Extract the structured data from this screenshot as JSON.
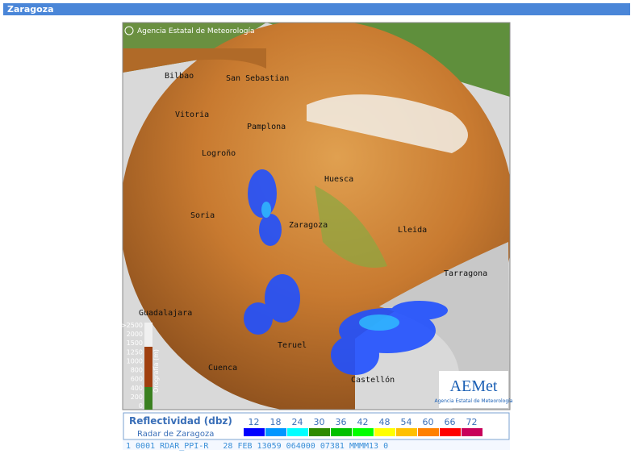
{
  "header": {
    "title": "Zaragoza"
  },
  "map": {
    "credit": "Agencia Estatal de Meteorología",
    "cities": [
      "Bilbao",
      "San Sebastian",
      "Vitoria",
      "Pamplona",
      "Logroño",
      "Huesca",
      "Soria",
      "Zaragoza",
      "Lleida",
      "Tarragona",
      "Guadalajara",
      "Teruel",
      "Cuenca",
      "Castellón"
    ],
    "elevation_legend": {
      "title": "Orografía (m)",
      "labels": [
        ">2500",
        "2000",
        "1500",
        "1250",
        "1000",
        "800",
        "600",
        "400",
        "200",
        "0"
      ]
    },
    "logo": {
      "name": "AEMet",
      "subtitle": "Agencia Estatal de Meteorología"
    }
  },
  "legend": {
    "title": "Reflectividad (dbz)",
    "subtitle": "Radar de Zaragoza",
    "values": [
      12,
      18,
      24,
      30,
      36,
      42,
      48,
      54,
      60,
      66,
      72
    ],
    "colors": [
      "#0000ff",
      "#0096ff",
      "#00ffff",
      "#2e8b00",
      "#00c000",
      "#00ff00",
      "#ffff00",
      "#ffc000",
      "#ff8000",
      "#ff0000",
      "#c8005a"
    ]
  },
  "status": "1 0001 RDAR_PPI-R   28 FEB 13059 064000 07381 MMMM13 0"
}
